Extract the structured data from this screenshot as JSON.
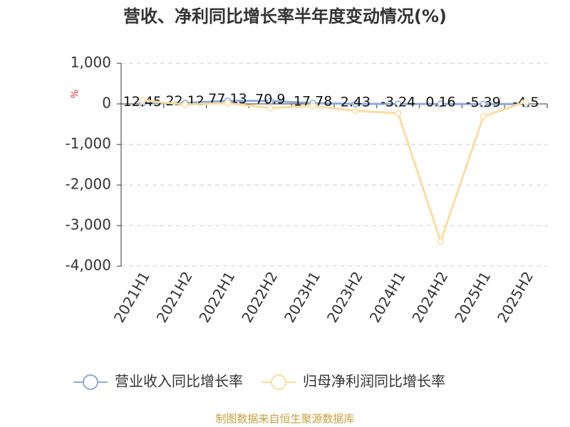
{
  "chart_data": {
    "type": "line",
    "title": "营收、净利同比增长率半年度变动情况(%)",
    "y_label": "%",
    "categories": [
      "2021H1",
      "2021H2",
      "2022H1",
      "2022H2",
      "2023H1",
      "2023H2",
      "2024H1",
      "2024H2",
      "2025H1",
      "2025H2"
    ],
    "series": [
      {
        "name": "营业收入同比增长率",
        "color": "#8eaad6",
        "values": [
          12.45,
          22.12,
          77.13,
          70.9,
          17.78,
          2.43,
          -3.24,
          0.16,
          -5.39,
          -4.5
        ],
        "show_labels": true
      },
      {
        "name": "归母净利润同比增长率",
        "color": "#fddc9e",
        "values": [
          90,
          -20,
          20,
          -100,
          -50,
          -170,
          -230,
          -3390,
          -310,
          50
        ],
        "show_labels": false
      }
    ],
    "ylim": [
      -4000,
      1000
    ],
    "yticks": [
      {
        "value": -4000,
        "label": "-4,000"
      },
      {
        "value": -3000,
        "label": "-3,000"
      },
      {
        "value": -2000,
        "label": "-2,000"
      },
      {
        "value": -1000,
        "label": "-1,000"
      },
      0,
      {
        "value": 1000,
        "label": "1,000"
      }
    ],
    "grid": true,
    "legend": "bottom",
    "source": "制图数据来自恒生聚源数据库"
  }
}
